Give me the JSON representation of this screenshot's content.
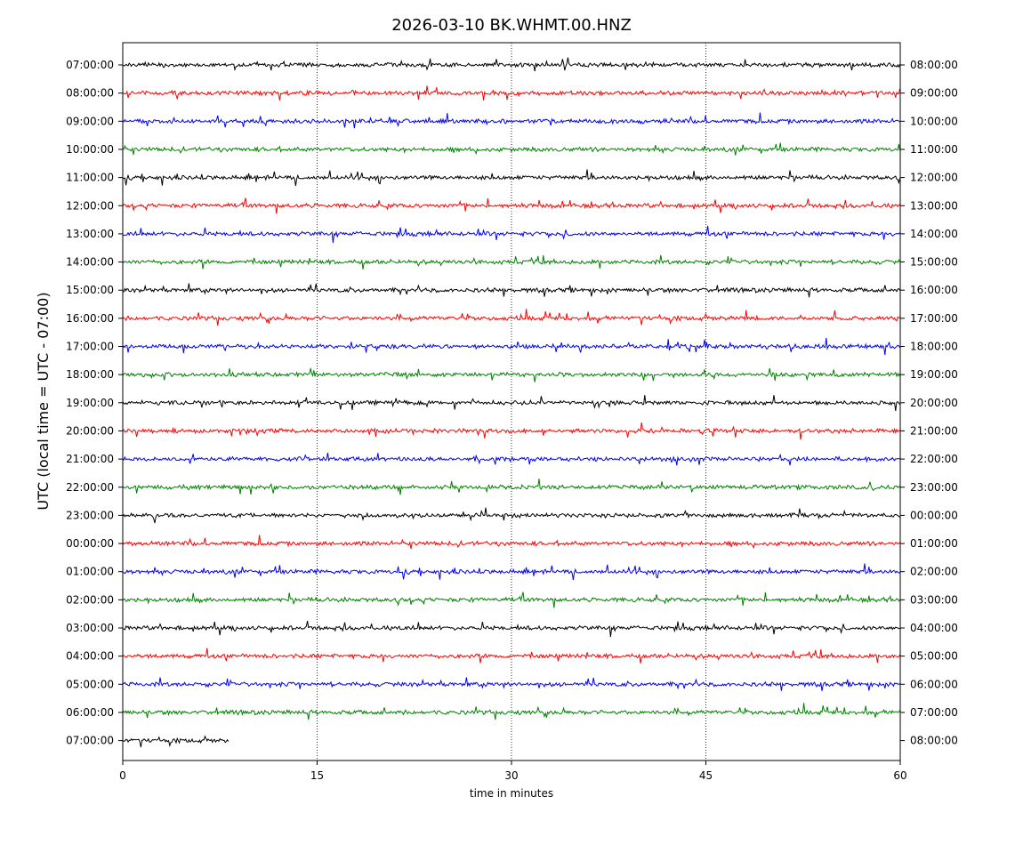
{
  "chart_data": {
    "type": "line",
    "title": "2026-03-10 BK.WHMT.00.HNZ",
    "xlabel": "time in minutes",
    "ylabel": "UTC (local time = UTC - 07:00)",
    "xlim": [
      0,
      60
    ],
    "x_ticks": [
      "0",
      "15",
      "30",
      "45",
      "60"
    ],
    "x_tick_values": [
      0,
      15,
      30,
      45,
      60
    ],
    "vertical_gridlines_at": [
      15,
      30,
      45
    ],
    "grid": "dotted vertical",
    "colors": [
      "#000000",
      "#ff0000",
      "#0000ff",
      "#008000"
    ],
    "series": [
      {
        "left_label": "07:00:00",
        "right_label": "08:00:00",
        "color": "#000000",
        "end_minute": 60
      },
      {
        "left_label": "08:00:00",
        "right_label": "09:00:00",
        "color": "#ff0000",
        "end_minute": 60
      },
      {
        "left_label": "09:00:00",
        "right_label": "10:00:00",
        "color": "#0000ff",
        "end_minute": 60
      },
      {
        "left_label": "10:00:00",
        "right_label": "11:00:00",
        "color": "#008000",
        "end_minute": 60
      },
      {
        "left_label": "11:00:00",
        "right_label": "12:00:00",
        "color": "#000000",
        "end_minute": 60
      },
      {
        "left_label": "12:00:00",
        "right_label": "13:00:00",
        "color": "#ff0000",
        "end_minute": 60
      },
      {
        "left_label": "13:00:00",
        "right_label": "14:00:00",
        "color": "#0000ff",
        "end_minute": 60
      },
      {
        "left_label": "14:00:00",
        "right_label": "15:00:00",
        "color": "#008000",
        "end_minute": 60
      },
      {
        "left_label": "15:00:00",
        "right_label": "16:00:00",
        "color": "#000000",
        "end_minute": 60
      },
      {
        "left_label": "16:00:00",
        "right_label": "17:00:00",
        "color": "#ff0000",
        "end_minute": 60
      },
      {
        "left_label": "17:00:00",
        "right_label": "18:00:00",
        "color": "#0000ff",
        "end_minute": 60
      },
      {
        "left_label": "18:00:00",
        "right_label": "19:00:00",
        "color": "#008000",
        "end_minute": 60
      },
      {
        "left_label": "19:00:00",
        "right_label": "20:00:00",
        "color": "#000000",
        "end_minute": 60
      },
      {
        "left_label": "20:00:00",
        "right_label": "21:00:00",
        "color": "#ff0000",
        "end_minute": 60
      },
      {
        "left_label": "21:00:00",
        "right_label": "22:00:00",
        "color": "#0000ff",
        "end_minute": 60
      },
      {
        "left_label": "22:00:00",
        "right_label": "23:00:00",
        "color": "#008000",
        "end_minute": 60
      },
      {
        "left_label": "23:00:00",
        "right_label": "00:00:00",
        "color": "#000000",
        "end_minute": 60
      },
      {
        "left_label": "00:00:00",
        "right_label": "01:00:00",
        "color": "#ff0000",
        "end_minute": 60
      },
      {
        "left_label": "01:00:00",
        "right_label": "02:00:00",
        "color": "#0000ff",
        "end_minute": 60
      },
      {
        "left_label": "02:00:00",
        "right_label": "03:00:00",
        "color": "#008000",
        "end_minute": 60
      },
      {
        "left_label": "03:00:00",
        "right_label": "04:00:00",
        "color": "#000000",
        "end_minute": 60
      },
      {
        "left_label": "04:00:00",
        "right_label": "05:00:00",
        "color": "#ff0000",
        "end_minute": 60
      },
      {
        "left_label": "05:00:00",
        "right_label": "06:00:00",
        "color": "#0000ff",
        "end_minute": 60
      },
      {
        "left_label": "06:00:00",
        "right_label": "07:00:00",
        "color": "#008000",
        "end_minute": 60
      },
      {
        "left_label": "07:00:00",
        "right_label": "08:00:00",
        "color": "#000000",
        "end_minute": 8.2
      }
    ]
  }
}
